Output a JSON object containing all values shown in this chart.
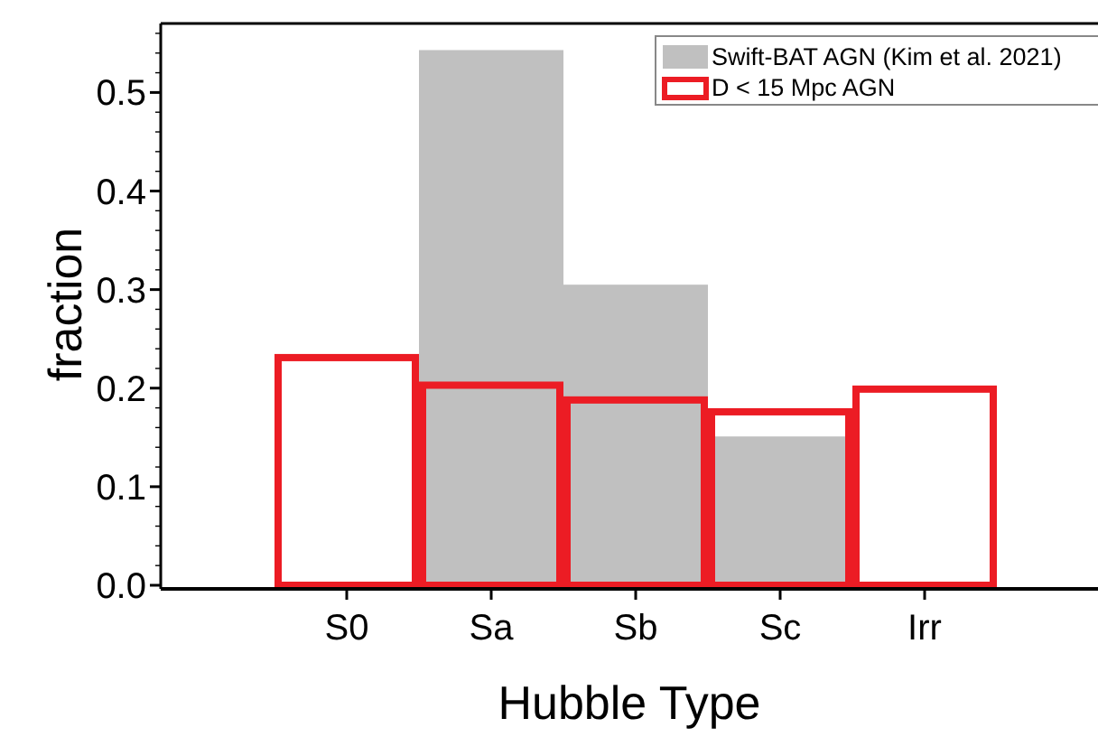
{
  "chart_data": {
    "type": "bar",
    "xlabel": "Hubble Type",
    "ylabel": "fraction",
    "categories": [
      null,
      "S0",
      "Sa",
      "Sb",
      "Sc",
      "Irr",
      null
    ],
    "series": [
      {
        "name": "Swift-BAT AGN (Kim et al. 2021)",
        "color": "#c0c0c0",
        "values": [
          0,
          0,
          0.543,
          0.305,
          0.151,
          0,
          0
        ]
      },
      {
        "name": "D < 15 Mpc AGN",
        "color": "#ec1c24",
        "values": [
          0,
          0.231,
          0.203,
          0.188,
          0.176,
          0.199,
          0
        ]
      }
    ],
    "ylim": [
      0,
      0.57
    ],
    "yticks": [
      {
        "value": 0,
        "label": "0.0"
      },
      {
        "value": 0.1,
        "label": "0.1"
      },
      {
        "value": 0.2,
        "label": "0.2"
      },
      {
        "value": 0.3,
        "label": "0.3"
      },
      {
        "value": 0.4,
        "label": "0.4"
      },
      {
        "value": 0.5,
        "label": "0.5"
      }
    ],
    "grid": false,
    "legend": "top right"
  }
}
